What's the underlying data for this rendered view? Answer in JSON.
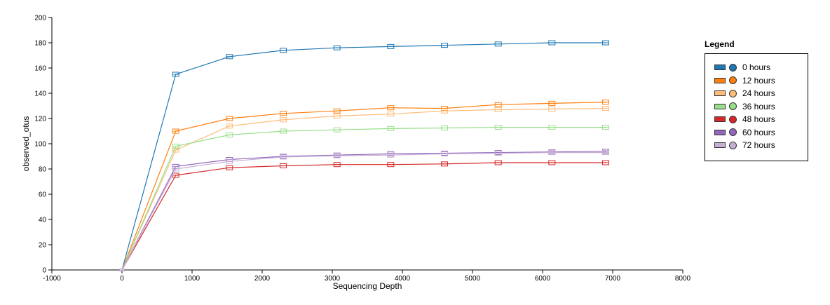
{
  "chart_data": {
    "type": "line",
    "xlabel": "Sequencing Depth",
    "ylabel": "observed_otus",
    "xlim": [
      -1000,
      8000
    ],
    "ylim": [
      0,
      200
    ],
    "xticks": [
      -1000,
      0,
      1000,
      2000,
      3000,
      4000,
      5000,
      6000,
      7000,
      8000
    ],
    "yticks": [
      0,
      20,
      40,
      60,
      80,
      100,
      120,
      140,
      160,
      180,
      200
    ],
    "x": [
      0,
      767,
      1533,
      2300,
      3067,
      3833,
      4600,
      5367,
      6133,
      6900
    ],
    "legend_title": "Legend",
    "legend_position": "right",
    "series": [
      {
        "name": "0 hours",
        "color": "#1f77b4",
        "line": "#1f77b4",
        "values": [
          0,
          155,
          169,
          174,
          176,
          177,
          178,
          179,
          180,
          180
        ]
      },
      {
        "name": "12 hours",
        "color": "#ff7f0e",
        "line": "#ff7f0e",
        "values": [
          0,
          110,
          120,
          124,
          126,
          128.5,
          128,
          131,
          132,
          133
        ]
      },
      {
        "name": "24 hours",
        "color": "#ffbb78",
        "line": "#ffbb78",
        "values": [
          0,
          95,
          114,
          119,
          122,
          123.5,
          126,
          127,
          127.5,
          128
        ]
      },
      {
        "name": "36 hours",
        "color": "#98df8a",
        "line": "#98df8a",
        "values": [
          0,
          98,
          107,
          110,
          111,
          112,
          112.5,
          113,
          113,
          113
        ]
      },
      {
        "name": "48 hours",
        "color": "#d62728",
        "line": "#d62728",
        "values": [
          0,
          75,
          81,
          82.5,
          83.5,
          83.5,
          84,
          85,
          85,
          85
        ]
      },
      {
        "name": "60 hours",
        "color": "#9467bd",
        "line": "#9467bd",
        "values": [
          0,
          82,
          87.5,
          90,
          91,
          92,
          92.5,
          93,
          93.5,
          94
        ]
      },
      {
        "name": "72 hours",
        "color": "#c5b0d5",
        "line": "#c5b0d5",
        "values": [
          0,
          80,
          86,
          89.5,
          90.5,
          91,
          92,
          92.5,
          93,
          93
        ]
      }
    ]
  }
}
